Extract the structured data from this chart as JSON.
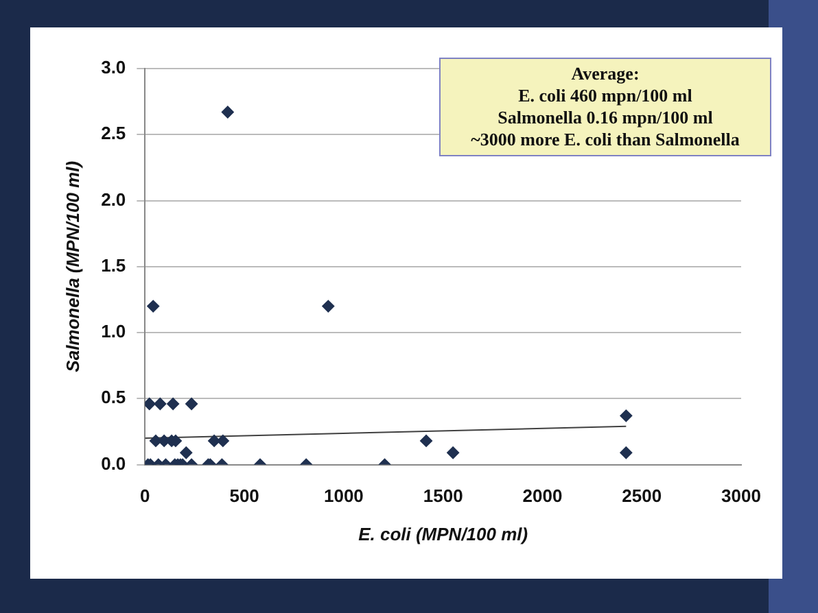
{
  "chart_data": {
    "type": "scatter",
    "xlabel": "E. coli (MPN/100 ml)",
    "ylabel": "Salmonella (MPN/100 ml)",
    "annotations": [
      "Average:",
      "E. coli 460 mpn/100 ml",
      "Salmonella 0.16 mpn/100 ml",
      "~3000 more E. coli than Salmonella"
    ],
    "xlim": [
      0,
      3000
    ],
    "xticks": [
      0,
      500,
      1000,
      1500,
      2000,
      2500,
      3000
    ],
    "ylim": [
      0,
      3
    ],
    "yticks": [
      {
        "value": 0,
        "label": "0.0"
      },
      {
        "value": 0.5,
        "label": "0.5"
      },
      {
        "value": 1,
        "label": "1.0"
      },
      {
        "value": 1.5,
        "label": "1.5"
      },
      {
        "value": 2,
        "label": "2.0"
      },
      {
        "value": 2.5,
        "label": "2.5"
      },
      {
        "value": 3,
        "label": "3.0"
      }
    ],
    "grid": "y",
    "marker": "diamond",
    "legend": false,
    "series": [
      {
        "color": "#1f3050",
        "x": [
          22,
          76,
          141,
          234,
          54,
          96,
          134,
          154,
          348,
          392,
          1415,
          207,
          1550,
          15,
          27,
          67,
          104,
          150,
          165,
          178,
          189,
          234,
          318,
          328,
          387,
          579,
          811,
          1206,
          2421,
          2421,
          416,
          41,
          922
        ],
        "values": [
          0.46,
          0.46,
          0.46,
          0.46,
          0.18,
          0.18,
          0.18,
          0.18,
          0.18,
          0.18,
          0.18,
          0.09,
          0.09,
          0,
          0,
          0,
          0,
          0,
          0,
          0,
          0,
          0,
          0,
          0,
          0,
          0,
          0,
          0,
          0.37,
          0.09,
          2.67,
          1.2,
          1.2
        ]
      },
      {
        "type": "line",
        "color": "#404040",
        "x": [
          0,
          2421
        ],
        "values": [
          0.2,
          0.29
        ],
        "marker": "none"
      }
    ]
  }
}
